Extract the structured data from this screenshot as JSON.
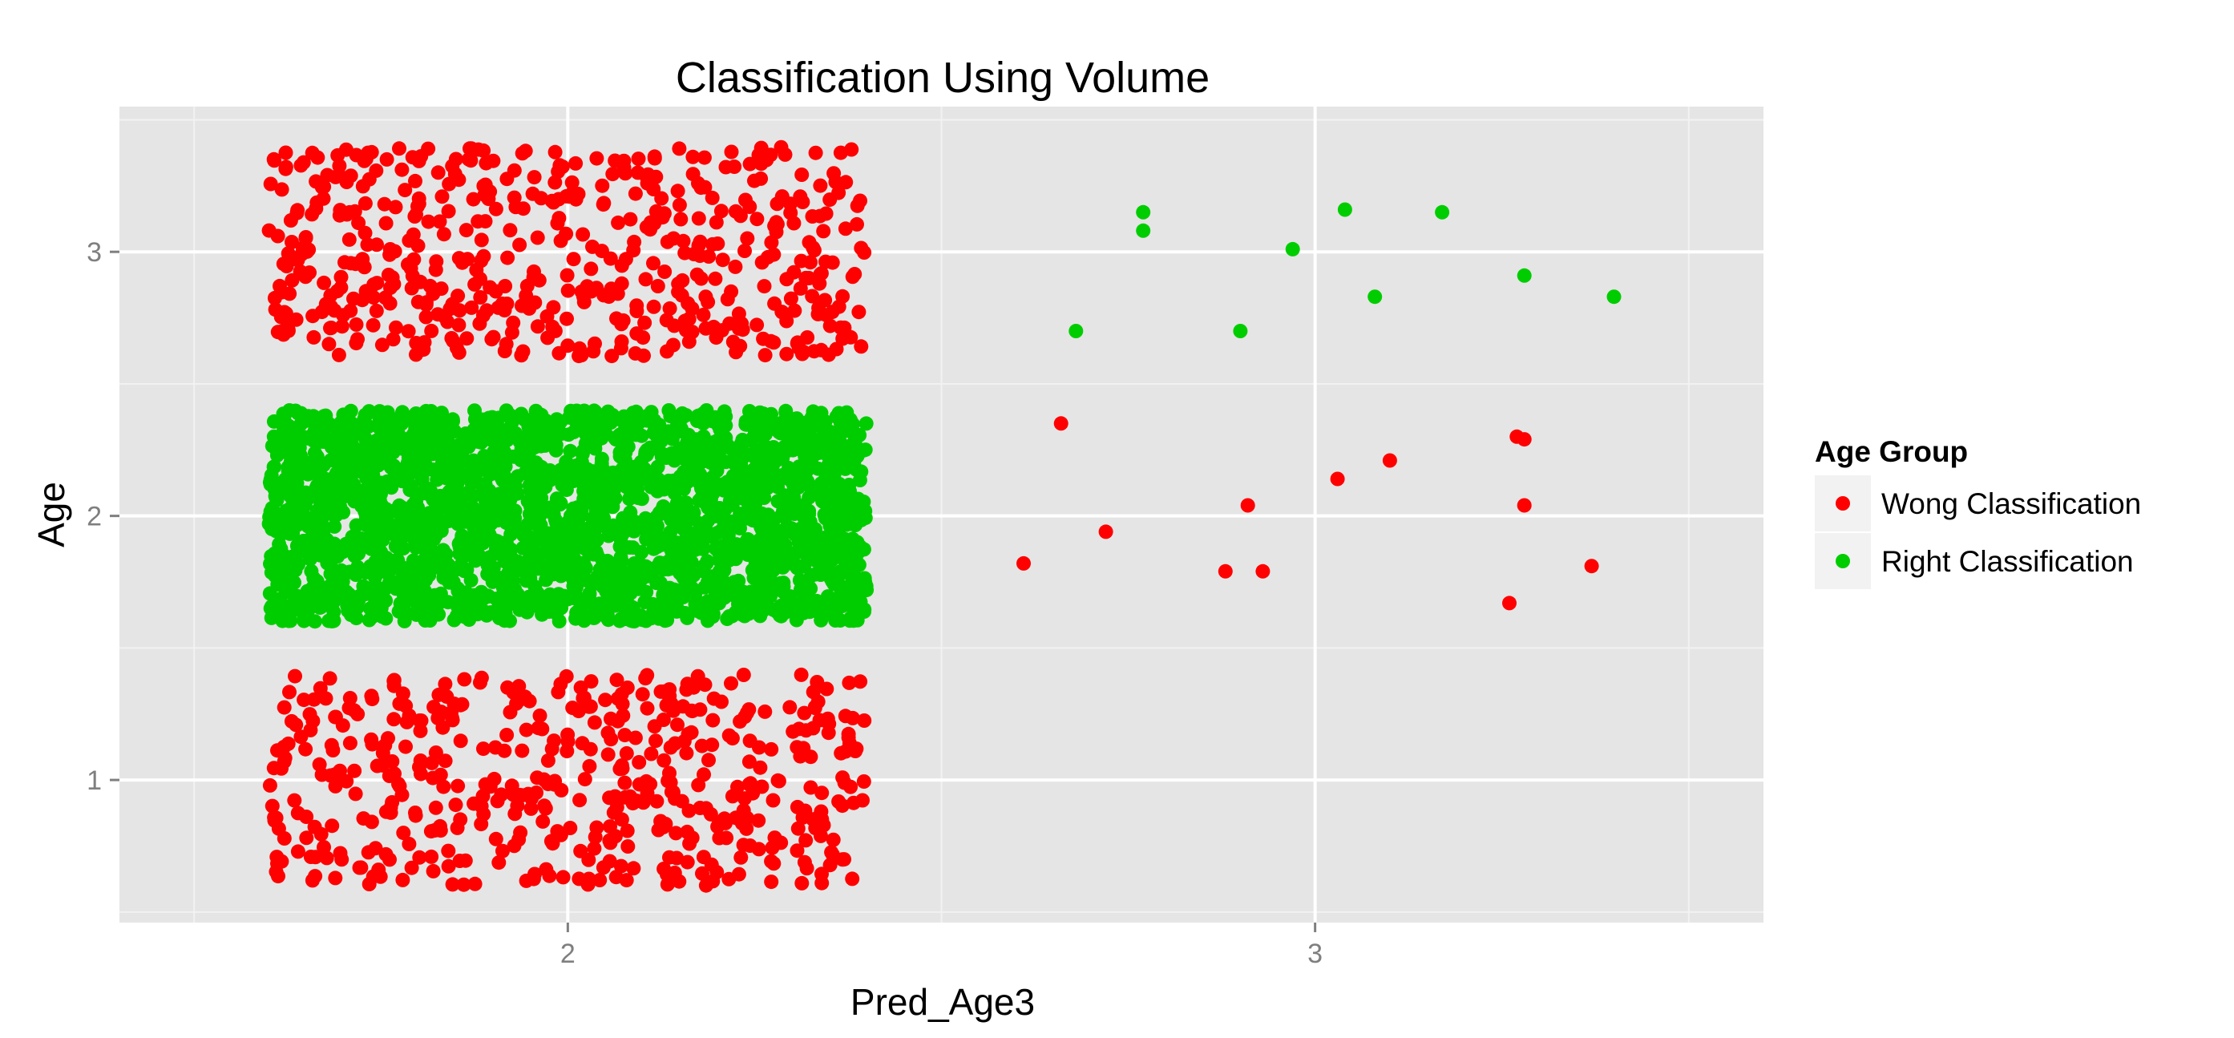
{
  "chart_data": {
    "type": "scatter",
    "title": "Classification Using Volume",
    "xlabel": "Pred_Age3",
    "ylabel": "Age",
    "xlim": [
      1.4,
      3.6
    ],
    "ylim": [
      0.46,
      3.55
    ],
    "x_ticks": [
      2,
      3
    ],
    "x_tick_labels": [
      "2",
      "3"
    ],
    "y_ticks": [
      1,
      2,
      3
    ],
    "y_tick_labels": [
      "1",
      "2",
      "3"
    ],
    "grid": true,
    "background": "#E5E5E5",
    "legend": {
      "title": "Age Group",
      "position": "right",
      "entries": [
        {
          "label": "Wong Classification",
          "color": "#FF0000"
        },
        {
          "label": "Right Classification",
          "color": "#00CD00"
        }
      ]
    },
    "jitter_clusters": [
      {
        "series": "Wong Classification",
        "x_range": [
          1.6,
          2.4
        ],
        "y_range": [
          0.6,
          1.4
        ],
        "count": 500
      },
      {
        "series": "Right Classification",
        "x_range": [
          1.6,
          2.4
        ],
        "y_range": [
          1.6,
          2.4
        ],
        "count": 2400
      },
      {
        "series": "Wong Classification",
        "x_range": [
          1.6,
          2.4
        ],
        "y_range": [
          2.6,
          3.4
        ],
        "count": 540
      }
    ],
    "series": [
      {
        "name": "Wong Classification",
        "color": "#FF0000",
        "points": [
          [
            2.61,
            1.82
          ],
          [
            2.66,
            2.35
          ],
          [
            2.72,
            1.94
          ],
          [
            2.88,
            1.79
          ],
          [
            2.91,
            2.04
          ],
          [
            2.93,
            1.79
          ],
          [
            3.03,
            2.14
          ],
          [
            3.1,
            2.21
          ],
          [
            3.26,
            1.67
          ],
          [
            3.27,
            2.3
          ],
          [
            3.28,
            2.29
          ],
          [
            3.28,
            2.04
          ],
          [
            3.37,
            1.81
          ]
        ]
      },
      {
        "name": "Right Classification",
        "color": "#00CD00",
        "points": [
          [
            2.68,
            2.7
          ],
          [
            2.77,
            3.15
          ],
          [
            2.77,
            3.08
          ],
          [
            2.9,
            2.7
          ],
          [
            2.97,
            3.01
          ],
          [
            3.04,
            3.16
          ],
          [
            3.08,
            2.83
          ],
          [
            3.17,
            3.15
          ],
          [
            3.28,
            2.91
          ],
          [
            3.4,
            2.83
          ]
        ]
      }
    ]
  }
}
